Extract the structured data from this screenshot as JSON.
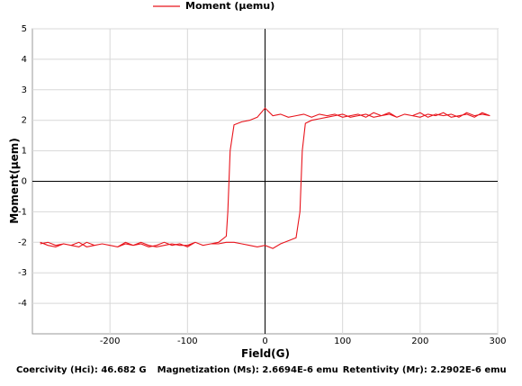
{
  "chart_data": {
    "type": "line",
    "legend_label": "Moment (μemu)",
    "ylabel": "Moment(μem)",
    "xlabel": "Field(G)",
    "xlim": [
      -300,
      300
    ],
    "xticks": [
      -200,
      -100,
      0,
      100,
      200,
      300
    ],
    "ylim": [
      -5,
      5
    ],
    "yticks": [
      -4,
      -3,
      -2,
      -1,
      0,
      1,
      2,
      3,
      4,
      5
    ],
    "grid": true,
    "series": [
      {
        "name": "Moment (μemu)",
        "color": "#e8141c",
        "x": [
          -290,
          -280,
          -270,
          -260,
          -250,
          -240,
          -230,
          -220,
          -210,
          -200,
          -190,
          -180,
          -170,
          -160,
          -150,
          -140,
          -130,
          -120,
          -110,
          -100,
          -90,
          -80,
          -70,
          -60,
          -50,
          -40,
          -30,
          -20,
          -10,
          0,
          10,
          20,
          30,
          40,
          45,
          48,
          52,
          60,
          70,
          80,
          90,
          100,
          110,
          120,
          130,
          140,
          150,
          160,
          170,
          180,
          190,
          200,
          210,
          220,
          230,
          240,
          250,
          260,
          270,
          280,
          290,
          280,
          270,
          260,
          250,
          240,
          230,
          220,
          210,
          200,
          190,
          180,
          170,
          160,
          150,
          140,
          130,
          120,
          110,
          100,
          90,
          80,
          70,
          60,
          50,
          40,
          30,
          20,
          10,
          0,
          -10,
          -20,
          -30,
          -40,
          -45,
          -48,
          -50,
          -60,
          -70,
          -80,
          -90,
          -100,
          -110,
          -120,
          -130,
          -140,
          -150,
          -160,
          -170,
          -180,
          -190,
          -200,
          -210,
          -220,
          -230,
          -240,
          -250,
          -260,
          -270,
          -280,
          -290
        ],
        "values": [
          -2.0,
          -2.1,
          -2.15,
          -2.05,
          -2.1,
          -2.0,
          -2.15,
          -2.1,
          -2.05,
          -2.1,
          -2.15,
          -2.05,
          -2.1,
          -2.0,
          -2.1,
          -2.15,
          -2.1,
          -2.05,
          -2.1,
          -2.1,
          -2.0,
          -2.1,
          -2.05,
          -2.05,
          -2.0,
          -2.0,
          -2.05,
          -2.1,
          -2.15,
          -2.1,
          -2.2,
          -2.05,
          -1.95,
          -1.85,
          -1.0,
          1.0,
          1.9,
          2.0,
          2.05,
          2.1,
          2.15,
          2.2,
          2.1,
          2.15,
          2.2,
          2.1,
          2.15,
          2.25,
          2.1,
          2.2,
          2.15,
          2.1,
          2.2,
          2.15,
          2.25,
          2.1,
          2.15,
          2.2,
          2.1,
          2.25,
          2.15,
          2.2,
          2.15,
          2.25,
          2.1,
          2.2,
          2.15,
          2.2,
          2.1,
          2.25,
          2.15,
          2.2,
          2.1,
          2.2,
          2.15,
          2.25,
          2.1,
          2.2,
          2.15,
          2.1,
          2.2,
          2.15,
          2.2,
          2.1,
          2.2,
          2.15,
          2.1,
          2.2,
          2.15,
          2.4,
          2.1,
          2.0,
          1.95,
          1.85,
          1.0,
          -1.0,
          -1.8,
          -2.0,
          -2.05,
          -2.1,
          -2.0,
          -2.15,
          -2.05,
          -2.1,
          -2.0,
          -2.1,
          -2.15,
          -2.05,
          -2.1,
          -2.0,
          -2.15,
          -2.1,
          -2.05,
          -2.1,
          -2.0,
          -2.15,
          -2.1,
          -2.05,
          -2.1,
          -2.0,
          -2.05
        ]
      }
    ],
    "annotations": [
      "Coercivity (Hci): 46.682 G",
      "Magnetization (Ms): 2.6694E-6 emu",
      "Retentivity (Mr): 2.2902E-6 emu"
    ]
  }
}
